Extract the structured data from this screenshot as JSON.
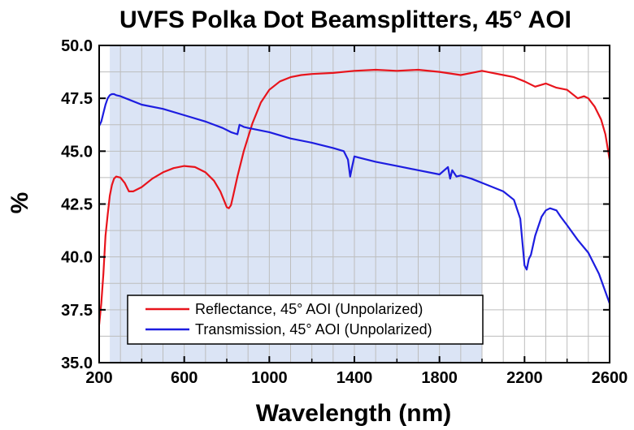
{
  "chart_data": {
    "type": "line",
    "title": "UVFS Polka Dot Beamsplitters, 45° AOI",
    "xlabel": "Wavelength (nm)",
    "ylabel": "%",
    "xlim": [
      200,
      2600
    ],
    "ylim": [
      35.0,
      50.0
    ],
    "x_ticks": [
      "200",
      "600",
      "1000",
      "1400",
      "1800",
      "2200",
      "2600"
    ],
    "y_ticks": [
      "35.0",
      "37.5",
      "40.0",
      "42.5",
      "45.0",
      "47.5",
      "50.0"
    ],
    "grid": true,
    "shaded_region": {
      "x_start": 250,
      "x_end": 2000,
      "color": "#dbe4f5"
    },
    "legend_position": "bottom-left",
    "series": [
      {
        "name": "Reflectance, 45° AOI (Unpolarized)",
        "color": "#e8141c",
        "x": [
          200,
          210,
          220,
          230,
          240,
          250,
          260,
          270,
          280,
          300,
          320,
          340,
          360,
          400,
          450,
          500,
          550,
          600,
          650,
          700,
          740,
          770,
          790,
          800,
          810,
          820,
          830,
          850,
          880,
          920,
          960,
          1000,
          1050,
          1100,
          1150,
          1200,
          1300,
          1400,
          1500,
          1600,
          1700,
          1800,
          1900,
          1950,
          2000,
          2050,
          2100,
          2150,
          2200,
          2250,
          2300,
          2350,
          2400,
          2450,
          2480,
          2500,
          2530,
          2560,
          2580,
          2600
        ],
        "y": [
          36.8,
          37.8,
          39.2,
          41.0,
          42.0,
          42.9,
          43.4,
          43.7,
          43.8,
          43.75,
          43.5,
          43.1,
          43.1,
          43.3,
          43.7,
          44.0,
          44.2,
          44.3,
          44.25,
          44.0,
          43.6,
          43.1,
          42.6,
          42.35,
          42.3,
          42.45,
          42.9,
          43.8,
          45.0,
          46.3,
          47.3,
          47.9,
          48.3,
          48.5,
          48.6,
          48.65,
          48.7,
          48.8,
          48.85,
          48.8,
          48.85,
          48.75,
          48.6,
          48.7,
          48.8,
          48.7,
          48.6,
          48.5,
          48.3,
          48.05,
          48.2,
          48.0,
          47.9,
          47.5,
          47.6,
          47.5,
          47.1,
          46.5,
          45.8,
          44.6
        ]
      },
      {
        "name": "Transmission, 45° AOI (Unpolarized)",
        "color": "#1d1de0",
        "x": [
          200,
          210,
          220,
          230,
          240,
          250,
          260,
          270,
          280,
          300,
          350,
          400,
          500,
          600,
          700,
          780,
          820,
          850,
          860,
          880,
          900,
          1000,
          1100,
          1200,
          1300,
          1350,
          1370,
          1380,
          1390,
          1400,
          1420,
          1500,
          1600,
          1700,
          1800,
          1840,
          1850,
          1860,
          1880,
          1900,
          1950,
          2000,
          2050,
          2100,
          2150,
          2180,
          2200,
          2210,
          2220,
          2230,
          2250,
          2280,
          2300,
          2320,
          2350,
          2370,
          2400,
          2450,
          2500,
          2550,
          2600
        ],
        "y": [
          46.2,
          46.4,
          46.8,
          47.2,
          47.5,
          47.65,
          47.7,
          47.7,
          47.65,
          47.6,
          47.4,
          47.2,
          47.0,
          46.7,
          46.4,
          46.1,
          45.9,
          45.8,
          46.25,
          46.15,
          46.1,
          45.9,
          45.6,
          45.4,
          45.15,
          45.0,
          44.6,
          43.8,
          44.3,
          44.75,
          44.7,
          44.5,
          44.3,
          44.1,
          43.9,
          44.25,
          43.7,
          44.1,
          43.8,
          43.85,
          43.7,
          43.5,
          43.3,
          43.1,
          42.7,
          41.8,
          39.6,
          39.4,
          39.9,
          40.1,
          41.0,
          41.9,
          42.2,
          42.3,
          42.2,
          41.9,
          41.5,
          40.8,
          40.2,
          39.2,
          37.8
        ]
      }
    ]
  }
}
